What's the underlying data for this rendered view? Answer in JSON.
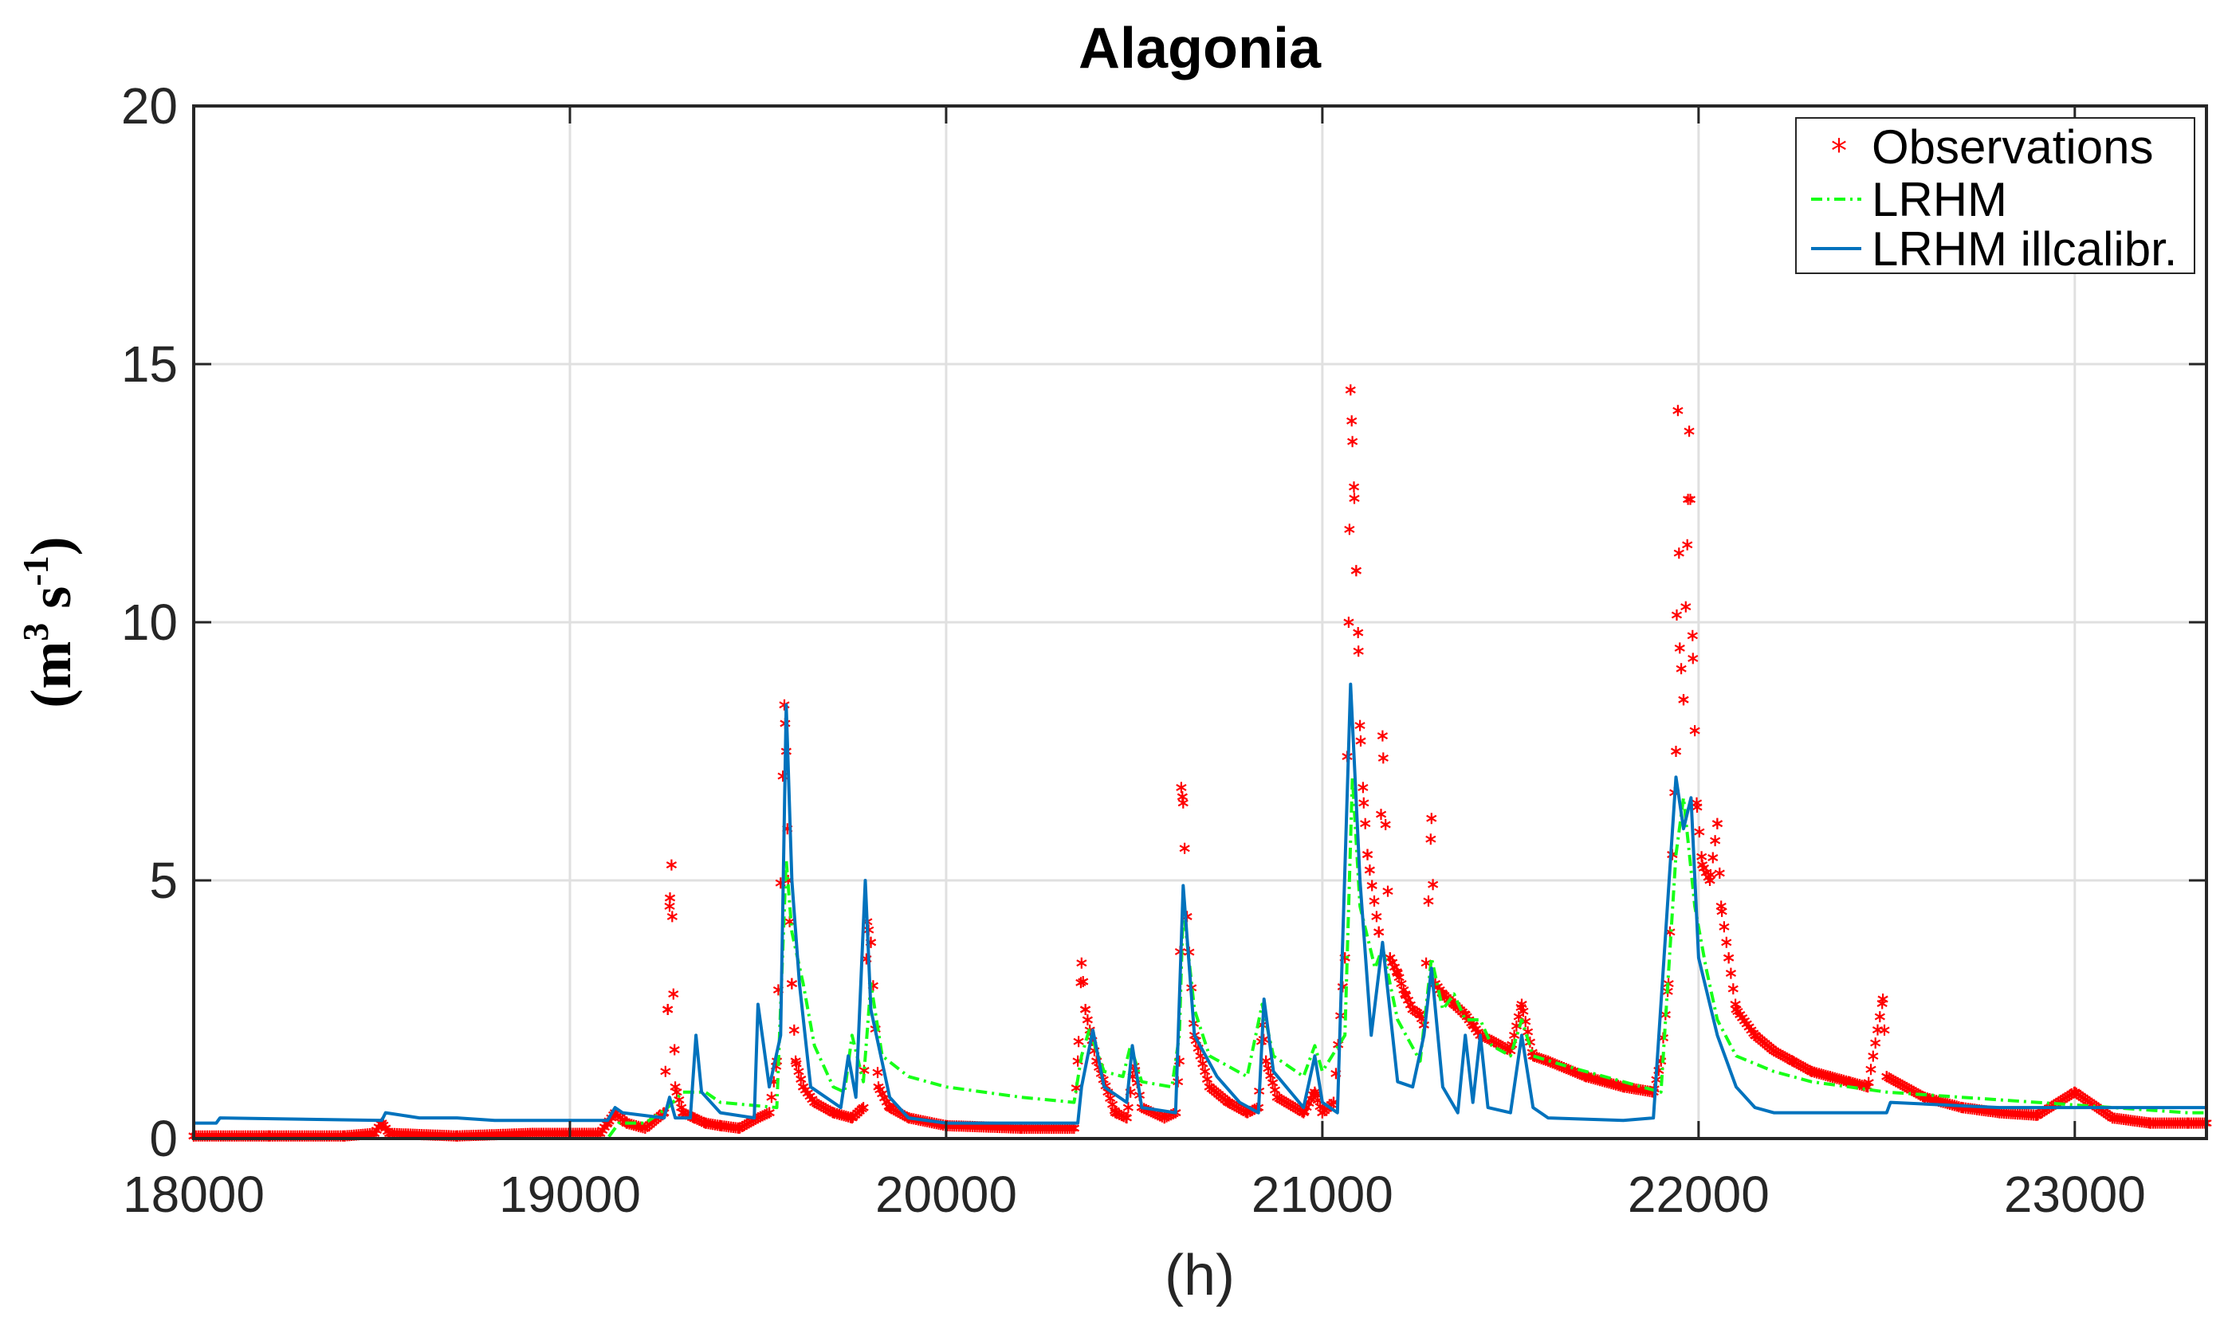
{
  "chart_data": {
    "type": "line",
    "title": "Alagonia",
    "xlabel": "(h)",
    "ylabel": {
      "base": "(m",
      "exp1": "3",
      "mid": " s",
      "exp2": "-1",
      "end": ")"
    },
    "xlim": [
      18000,
      23350
    ],
    "ylim": [
      0,
      20
    ],
    "xticks": [
      18000,
      19000,
      20000,
      21000,
      22000,
      23000
    ],
    "yticks": [
      0,
      5,
      10,
      15,
      20
    ],
    "xtick_labels": [
      "18000",
      "19000",
      "20000",
      "21000",
      "22000",
      "23000"
    ],
    "ytick_labels": [
      "0",
      "5",
      "10",
      "15",
      "20"
    ],
    "grid": true,
    "legend_position": "top-right",
    "series": [
      {
        "name": "Observations",
        "style": "red-asterisk-markers",
        "color": "#ff0000",
        "points": [
          [
            18000,
            0.05
          ],
          [
            18200,
            0.05
          ],
          [
            18400,
            0.05
          ],
          [
            18480,
            0.1
          ],
          [
            18500,
            0.3
          ],
          [
            18520,
            0.1
          ],
          [
            18700,
            0.05
          ],
          [
            18900,
            0.1
          ],
          [
            19080,
            0.1
          ],
          [
            19100,
            0.3
          ],
          [
            19120,
            0.5
          ],
          [
            19150,
            0.3
          ],
          [
            19200,
            0.2
          ],
          [
            19250,
            0.5
          ],
          [
            19260,
            2.5
          ],
          [
            19265,
            4.5
          ],
          [
            19270,
            5.3
          ],
          [
            19275,
            2.8
          ],
          [
            19280,
            1.0
          ],
          [
            19300,
            0.5
          ],
          [
            19330,
            0.4
          ],
          [
            19360,
            0.3
          ],
          [
            19400,
            0.25
          ],
          [
            19450,
            0.2
          ],
          [
            19500,
            0.4
          ],
          [
            19530,
            0.5
          ],
          [
            19550,
            1.5
          ],
          [
            19570,
            8.4
          ],
          [
            19575,
            7.5
          ],
          [
            19580,
            5.0
          ],
          [
            19590,
            3.0
          ],
          [
            19600,
            1.5
          ],
          [
            19620,
            1.0
          ],
          [
            19650,
            0.7
          ],
          [
            19700,
            0.5
          ],
          [
            19750,
            0.4
          ],
          [
            19780,
            0.6
          ],
          [
            19790,
            4.2
          ],
          [
            19800,
            3.8
          ],
          [
            19820,
            1.0
          ],
          [
            19850,
            0.6
          ],
          [
            19900,
            0.4
          ],
          [
            20000,
            0.25
          ],
          [
            20200,
            0.2
          ],
          [
            20340,
            0.2
          ],
          [
            20350,
            1.5
          ],
          [
            20360,
            3.4
          ],
          [
            20370,
            2.5
          ],
          [
            20400,
            1.5
          ],
          [
            20450,
            0.5
          ],
          [
            20480,
            0.4
          ],
          [
            20500,
            1.4
          ],
          [
            20520,
            0.6
          ],
          [
            20580,
            0.4
          ],
          [
            20610,
            0.5
          ],
          [
            20620,
            1.5
          ],
          [
            20625,
            6.8
          ],
          [
            20630,
            6.5
          ],
          [
            20640,
            4.3
          ],
          [
            20660,
            2.0
          ],
          [
            20700,
            1.0
          ],
          [
            20750,
            0.7
          ],
          [
            20800,
            0.5
          ],
          [
            20830,
            0.6
          ],
          [
            20840,
            2.2
          ],
          [
            20850,
            1.5
          ],
          [
            20880,
            0.8
          ],
          [
            20950,
            0.5
          ],
          [
            20980,
            0.9
          ],
          [
            21000,
            0.5
          ],
          [
            21030,
            0.7
          ],
          [
            21060,
            3.5
          ],
          [
            21070,
            10.0
          ],
          [
            21075,
            14.5
          ],
          [
            21080,
            13.5
          ],
          [
            21085,
            12.4
          ],
          [
            21090,
            11.0
          ],
          [
            21095,
            9.8
          ],
          [
            21100,
            8.0
          ],
          [
            21110,
            6.5
          ],
          [
            21120,
            5.5
          ],
          [
            21150,
            4.0
          ],
          [
            21160,
            7.8
          ],
          [
            21180,
            3.5
          ],
          [
            21200,
            3.2
          ],
          [
            21220,
            2.8
          ],
          [
            21240,
            2.5
          ],
          [
            21260,
            2.4
          ],
          [
            21270,
            2.2
          ],
          [
            21290,
            6.2
          ],
          [
            21300,
            3.0
          ],
          [
            21320,
            2.8
          ],
          [
            21350,
            2.6
          ],
          [
            21380,
            2.4
          ],
          [
            21400,
            2.2
          ],
          [
            21420,
            2.0
          ],
          [
            21450,
            1.9
          ],
          [
            21500,
            1.7
          ],
          [
            21530,
            2.6
          ],
          [
            21560,
            1.6
          ],
          [
            21600,
            1.5
          ],
          [
            21700,
            1.2
          ],
          [
            21800,
            1.0
          ],
          [
            21880,
            0.9
          ],
          [
            21900,
            1.5
          ],
          [
            21920,
            3.0
          ],
          [
            21930,
            5.5
          ],
          [
            21940,
            7.5
          ],
          [
            21945,
            14.1
          ],
          [
            21950,
            9.5
          ],
          [
            21960,
            8.5
          ],
          [
            21970,
            11.5
          ],
          [
            21975,
            13.7
          ],
          [
            21985,
            9.3
          ],
          [
            21995,
            6.5
          ],
          [
            22010,
            5.3
          ],
          [
            22030,
            5.0
          ],
          [
            22050,
            6.1
          ],
          [
            22060,
            4.5
          ],
          [
            22080,
            3.5
          ],
          [
            22100,
            2.5
          ],
          [
            22150,
            2.0
          ],
          [
            22200,
            1.7
          ],
          [
            22250,
            1.5
          ],
          [
            22300,
            1.3
          ],
          [
            22350,
            1.2
          ],
          [
            22400,
            1.1
          ],
          [
            22450,
            1.0
          ],
          [
            22490,
            2.7
          ],
          [
            22500,
            1.2
          ],
          [
            22600,
            0.8
          ],
          [
            22700,
            0.6
          ],
          [
            22800,
            0.5
          ],
          [
            22900,
            0.45
          ],
          [
            23000,
            0.9
          ],
          [
            23100,
            0.4
          ],
          [
            23200,
            0.3
          ],
          [
            23300,
            0.3
          ],
          [
            23350,
            0.3
          ]
        ]
      },
      {
        "name": "LRHM",
        "style": "green-dash-dot",
        "color": "#17ff17",
        "points": [
          [
            18000,
            0.0
          ],
          [
            19100,
            0.0
          ],
          [
            19130,
            0.3
          ],
          [
            19200,
            0.3
          ],
          [
            19260,
            0.6
          ],
          [
            19300,
            0.9
          ],
          [
            19360,
            0.9
          ],
          [
            19400,
            0.7
          ],
          [
            19550,
            0.6
          ],
          [
            19575,
            5.4
          ],
          [
            19590,
            4.0
          ],
          [
            19620,
            3.0
          ],
          [
            19650,
            1.8
          ],
          [
            19700,
            1.0
          ],
          [
            19730,
            0.9
          ],
          [
            19750,
            2.0
          ],
          [
            19780,
            1.1
          ],
          [
            19800,
            3.0
          ],
          [
            19830,
            1.6
          ],
          [
            19900,
            1.2
          ],
          [
            20000,
            1.0
          ],
          [
            20200,
            0.8
          ],
          [
            20340,
            0.7
          ],
          [
            20360,
            1.6
          ],
          [
            20380,
            2.1
          ],
          [
            20420,
            1.3
          ],
          [
            20470,
            1.2
          ],
          [
            20490,
            1.8
          ],
          [
            20520,
            1.1
          ],
          [
            20600,
            1.0
          ],
          [
            20620,
            2.0
          ],
          [
            20630,
            4.5
          ],
          [
            20660,
            2.5
          ],
          [
            20700,
            1.6
          ],
          [
            20800,
            1.2
          ],
          [
            20840,
            2.6
          ],
          [
            20870,
            1.6
          ],
          [
            20950,
            1.2
          ],
          [
            20980,
            1.8
          ],
          [
            21000,
            1.3
          ],
          [
            21060,
            2.0
          ],
          [
            21080,
            7.0
          ],
          [
            21100,
            4.5
          ],
          [
            21140,
            3.3
          ],
          [
            21160,
            3.7
          ],
          [
            21200,
            2.3
          ],
          [
            21260,
            1.5
          ],
          [
            21290,
            3.5
          ],
          [
            21320,
            2.5
          ],
          [
            21350,
            2.8
          ],
          [
            21380,
            2.3
          ],
          [
            21420,
            2.3
          ],
          [
            21450,
            1.8
          ],
          [
            21500,
            1.6
          ],
          [
            21530,
            2.3
          ],
          [
            21560,
            1.6
          ],
          [
            21650,
            1.4
          ],
          [
            21800,
            1.1
          ],
          [
            21900,
            0.9
          ],
          [
            21940,
            5.5
          ],
          [
            21960,
            6.6
          ],
          [
            21990,
            4.5
          ],
          [
            22020,
            3.3
          ],
          [
            22050,
            2.3
          ],
          [
            22100,
            1.6
          ],
          [
            22200,
            1.3
          ],
          [
            22300,
            1.1
          ],
          [
            22400,
            1.0
          ],
          [
            22500,
            0.9
          ],
          [
            22700,
            0.8
          ],
          [
            22900,
            0.7
          ],
          [
            23100,
            0.6
          ],
          [
            23300,
            0.5
          ],
          [
            23350,
            0.5
          ]
        ]
      },
      {
        "name": "LRHM illcalibr.",
        "style": "blue-solid",
        "color": "#0072bd",
        "points": [
          [
            18000,
            0.3
          ],
          [
            18060,
            0.3
          ],
          [
            18070,
            0.4
          ],
          [
            18500,
            0.35
          ],
          [
            18510,
            0.5
          ],
          [
            18600,
            0.4
          ],
          [
            18700,
            0.4
          ],
          [
            18800,
            0.35
          ],
          [
            19100,
            0.35
          ],
          [
            19120,
            0.6
          ],
          [
            19140,
            0.5
          ],
          [
            19250,
            0.4
          ],
          [
            19265,
            0.8
          ],
          [
            19280,
            0.4
          ],
          [
            19320,
            0.4
          ],
          [
            19335,
            2.0
          ],
          [
            19350,
            0.9
          ],
          [
            19400,
            0.5
          ],
          [
            19490,
            0.4
          ],
          [
            19500,
            2.6
          ],
          [
            19530,
            1.0
          ],
          [
            19560,
            2.0
          ],
          [
            19575,
            8.4
          ],
          [
            19590,
            5.0
          ],
          [
            19610,
            3.0
          ],
          [
            19640,
            1.0
          ],
          [
            19680,
            0.8
          ],
          [
            19720,
            0.6
          ],
          [
            19740,
            1.6
          ],
          [
            19760,
            0.8
          ],
          [
            19785,
            5.0
          ],
          [
            19800,
            2.5
          ],
          [
            19850,
            0.8
          ],
          [
            19900,
            0.4
          ],
          [
            20000,
            0.3
          ],
          [
            20350,
            0.3
          ],
          [
            20360,
            1.0
          ],
          [
            20390,
            2.1
          ],
          [
            20420,
            1.0
          ],
          [
            20480,
            0.7
          ],
          [
            20495,
            1.8
          ],
          [
            20520,
            0.6
          ],
          [
            20610,
            0.5
          ],
          [
            20630,
            4.9
          ],
          [
            20660,
            2.0
          ],
          [
            20720,
            1.2
          ],
          [
            20780,
            0.7
          ],
          [
            20830,
            0.5
          ],
          [
            20845,
            2.7
          ],
          [
            20870,
            1.3
          ],
          [
            20950,
            0.6
          ],
          [
            20980,
            1.6
          ],
          [
            21000,
            0.7
          ],
          [
            21040,
            0.5
          ],
          [
            21075,
            8.8
          ],
          [
            21100,
            5.0
          ],
          [
            21130,
            2.0
          ],
          [
            21160,
            3.8
          ],
          [
            21200,
            1.1
          ],
          [
            21240,
            1.0
          ],
          [
            21270,
            2.0
          ],
          [
            21290,
            3.3
          ],
          [
            21320,
            1.0
          ],
          [
            21360,
            0.5
          ],
          [
            21380,
            2.0
          ],
          [
            21400,
            0.7
          ],
          [
            21420,
            2.0
          ],
          [
            21440,
            0.6
          ],
          [
            21500,
            0.5
          ],
          [
            21530,
            2.0
          ],
          [
            21560,
            0.6
          ],
          [
            21600,
            0.4
          ],
          [
            21800,
            0.35
          ],
          [
            21880,
            0.4
          ],
          [
            21940,
            7.0
          ],
          [
            21960,
            6.0
          ],
          [
            21980,
            6.6
          ],
          [
            22000,
            3.5
          ],
          [
            22050,
            2.0
          ],
          [
            22100,
            1.0
          ],
          [
            22150,
            0.6
          ],
          [
            22200,
            0.5
          ],
          [
            22500,
            0.5
          ],
          [
            22510,
            0.7
          ],
          [
            22800,
            0.6
          ],
          [
            23000,
            0.6
          ],
          [
            23350,
            0.6
          ]
        ]
      }
    ]
  }
}
